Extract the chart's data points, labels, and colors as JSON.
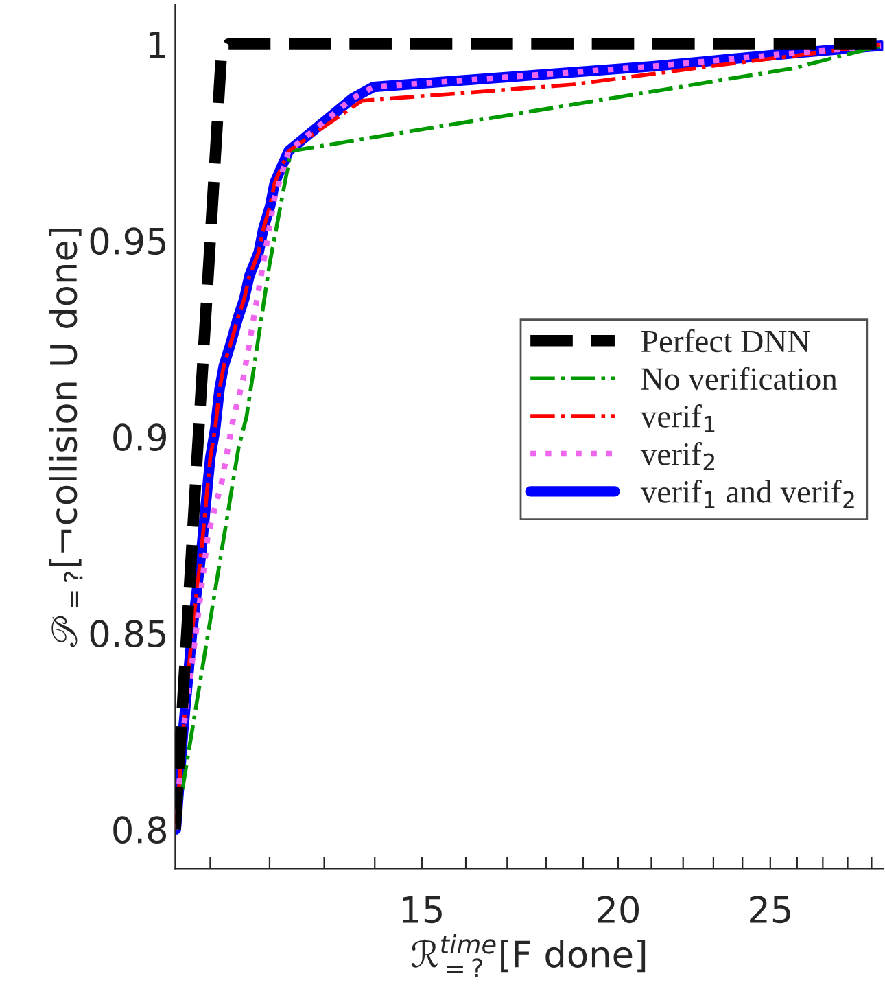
{
  "chart_data": {
    "type": "line",
    "xlabel": "ℛ$^{time}$$_{=?}$[F done]",
    "ylabel": "𝒫$_{=?}$[¬collision U done]",
    "log": "x",
    "xlim": [
      10.45,
      29.5
    ],
    "ylim": [
      0.79,
      1.01
    ],
    "xticks": [
      {
        "value": 11,
        "label": null
      },
      {
        "value": 12,
        "label": null
      },
      {
        "value": 13,
        "label": null
      },
      {
        "value": 14,
        "label": null
      },
      15,
      {
        "value": 16,
        "label": null
      },
      {
        "value": 17,
        "label": null
      },
      {
        "value": 18,
        "label": null
      },
      {
        "value": 19,
        "label": null
      },
      20,
      {
        "value": 21,
        "label": null
      },
      {
        "value": 22,
        "label": null
      },
      {
        "value": 23,
        "label": null
      },
      {
        "value": 24,
        "label": null
      },
      25,
      {
        "value": 26,
        "label": null
      },
      {
        "value": 27,
        "label": null
      },
      {
        "value": 28,
        "label": null
      },
      {
        "value": 29,
        "label": null
      }
    ],
    "yticks": [
      0.8,
      0.85,
      0.9,
      0.95,
      1
    ],
    "grid": false,
    "legend": "right",
    "marker": "none",
    "series": [
      {
        "name": "Perfect DNN",
        "color": "#000000",
        "line_style": "dashed",
        "x": [
          10.45,
          10.78,
          11.0,
          11.18,
          11.3,
          29.5
        ],
        "values": [
          0.8,
          0.892,
          0.95,
          0.997,
          1.0,
          1.0
        ]
      },
      {
        "name": "No verification",
        "color": "#009900",
        "line_style": "dashdot",
        "x": [
          10.46,
          11.47,
          11.6,
          12.0,
          12.38,
          25.8,
          29.4
        ],
        "values": [
          0.8,
          0.8975,
          0.905,
          0.944,
          0.9728,
          0.9938,
          0.9996
        ]
      },
      {
        "name": "verif$_{1}$",
        "color": "#ff0000",
        "line_style": "dashdot",
        "x": [
          10.46,
          10.57,
          10.71,
          10.86,
          11.0,
          11.08,
          11.15,
          11.22,
          11.34,
          11.45,
          11.56,
          11.65,
          11.81,
          11.89,
          12.01,
          12.09,
          12.34,
          13.74,
          18.7,
          22.9,
          26.2,
          29.4
        ],
        "values": [
          0.8,
          0.8246,
          0.85,
          0.8712,
          0.8946,
          0.902,
          0.912,
          0.918,
          0.924,
          0.93,
          0.935,
          0.941,
          0.947,
          0.953,
          0.9588,
          0.9647,
          0.9728,
          0.9856,
          0.9897,
          0.9944,
          0.9973,
          1.0
        ]
      },
      {
        "name": "verif$_{2}$",
        "color": "#ee66ee",
        "line_style": "dotted",
        "x": [
          10.46,
          10.57,
          10.8,
          10.96,
          11.19,
          11.37,
          11.54,
          12.09,
          12.34,
          13.55,
          13.97,
          21.1,
          23.4,
          26.2,
          29.4
        ],
        "values": [
          0.8,
          0.8246,
          0.8537,
          0.8747,
          0.8887,
          0.904,
          0.9144,
          0.961,
          0.9728,
          0.9862,
          0.9891,
          0.9944,
          0.9961,
          0.9979,
          0.9996
        ]
      },
      {
        "name": "verif$_{1}$ and verif$_{2}$",
        "color": "#0000ff",
        "line_style": "solid",
        "x": [
          10.46,
          10.57,
          10.71,
          10.86,
          11.0,
          11.08,
          11.15,
          11.22,
          11.34,
          11.45,
          11.56,
          11.65,
          11.81,
          11.89,
          12.01,
          12.09,
          12.34,
          13.55,
          13.97,
          21.1,
          23.4,
          26.2,
          29.4
        ],
        "values": [
          0.8,
          0.8246,
          0.85,
          0.8712,
          0.8946,
          0.902,
          0.912,
          0.918,
          0.924,
          0.93,
          0.935,
          0.941,
          0.947,
          0.953,
          0.9588,
          0.9647,
          0.9728,
          0.9862,
          0.9891,
          0.9944,
          0.9961,
          0.9979,
          0.9996
        ]
      }
    ]
  }
}
